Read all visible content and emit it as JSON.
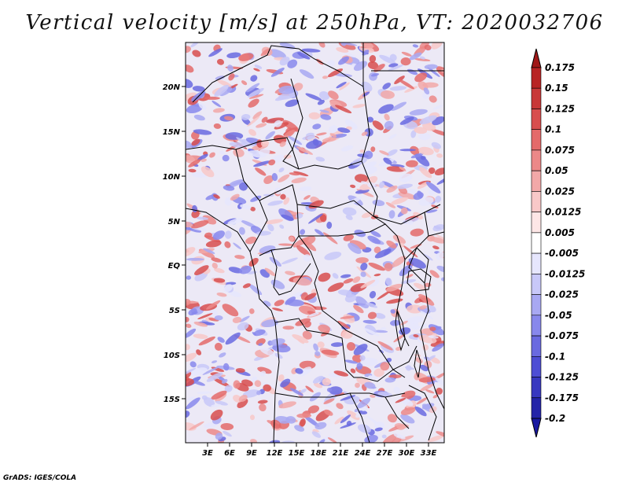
{
  "title": "Vertical velocity [m/s] at 250hPa, VT: 2020032706",
  "credit": "GrADS: IGES/COLA",
  "map": {
    "lat_labels": [
      "20N",
      "15N",
      "10N",
      "5N",
      "EQ",
      "5S",
      "10S",
      "15S"
    ],
    "lon_labels": [
      "3E",
      "6E",
      "9E",
      "12E",
      "15E",
      "18E",
      "21E",
      "24E",
      "27E",
      "30E",
      "33E"
    ]
  },
  "colorbar": {
    "labels": [
      "0.175",
      "0.15",
      "0.125",
      "0.1",
      "0.075",
      "0.05",
      "0.025",
      "0.0125",
      "0.005",
      "-0.005",
      "-0.0125",
      "-0.025",
      "-0.05",
      "-0.075",
      "-0.1",
      "-0.125",
      "-0.175",
      "-0.2"
    ],
    "colors": [
      "#a01818",
      "#b82424",
      "#c83838",
      "#d84e4e",
      "#e46a6a",
      "#ec8888",
      "#f2a8a8",
      "#f8c8c8",
      "#fde6e6",
      "#ffffff",
      "#e6e6fd",
      "#c8c8f8",
      "#a8a8f2",
      "#8888ec",
      "#6a6ae0",
      "#4e4ed4",
      "#3838c0",
      "#2424a8",
      "#1818a0"
    ]
  }
}
